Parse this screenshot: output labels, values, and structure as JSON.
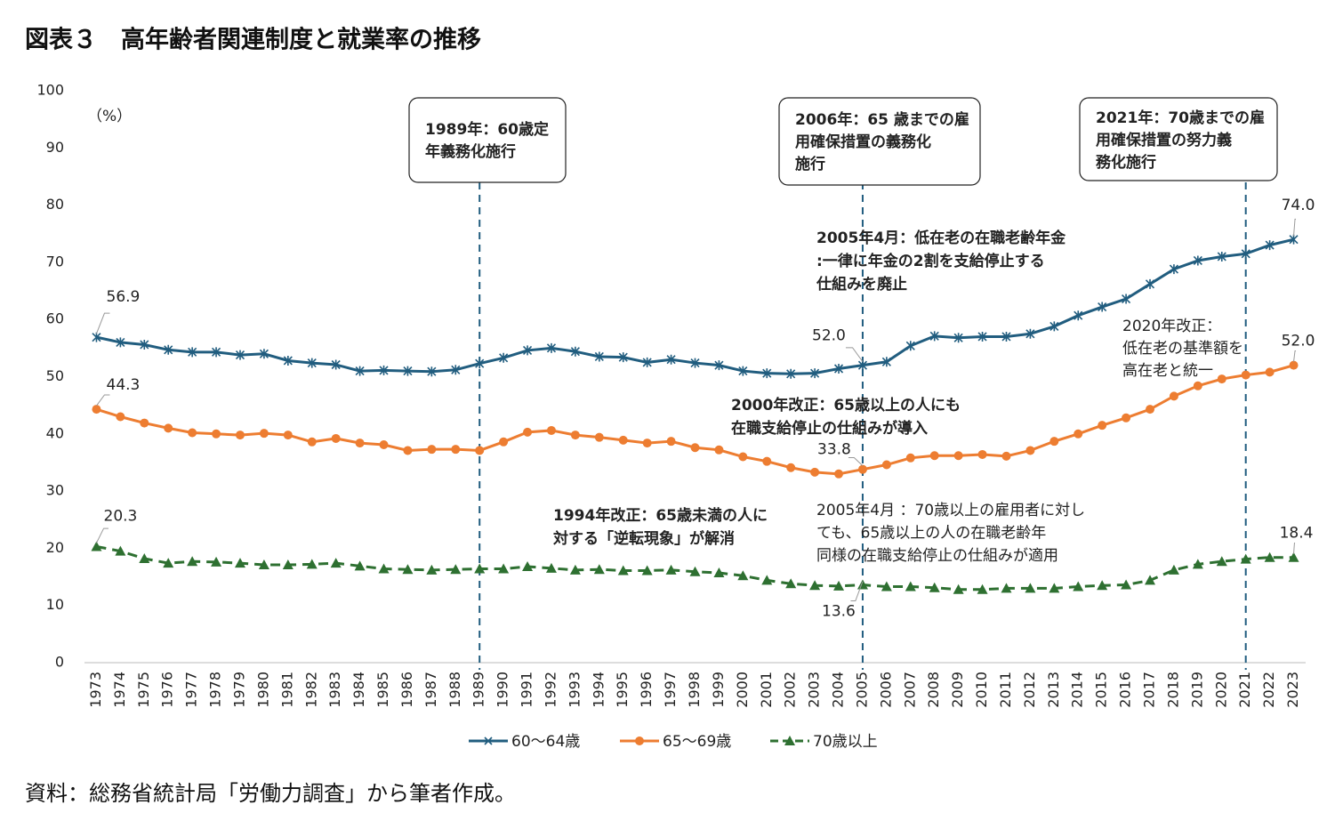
{
  "title": "図表３　高年齢者関連制度と就業率の推移",
  "source": "資料：総務省統計局「労働力調査」から筆者作成。",
  "chart_data": {
    "type": "line",
    "y_unit": "（%）",
    "categories": [
      "1973",
      "1974",
      "1975",
      "1976",
      "1977",
      "1978",
      "1979",
      "1980",
      "1981",
      "1982",
      "1983",
      "1984",
      "1985",
      "1986",
      "1987",
      "1988",
      "1989",
      "1990",
      "1991",
      "1992",
      "1993",
      "1994",
      "1995",
      "1996",
      "1997",
      "1998",
      "1999",
      "2000",
      "2001",
      "2002",
      "2003",
      "2004",
      "2005",
      "2006",
      "2007",
      "2008",
      "2009",
      "2010",
      "2011",
      "2012",
      "2013",
      "2014",
      "2015",
      "2016",
      "2017",
      "2018",
      "2019",
      "2020",
      "2021",
      "2022",
      "2023"
    ],
    "series": [
      {
        "name": "60～64歳",
        "color": "#215d7f",
        "marker": "cross",
        "dashed": false,
        "values": [
          56.9,
          56.0,
          55.6,
          54.7,
          54.3,
          54.3,
          53.8,
          54.0,
          52.8,
          52.4,
          52.1,
          51.0,
          51.1,
          51.0,
          50.9,
          51.2,
          52.3,
          53.3,
          54.6,
          55.0,
          54.4,
          53.5,
          53.4,
          52.5,
          53.0,
          52.4,
          52.0,
          51.0,
          50.6,
          50.5,
          50.6,
          51.4,
          52.0,
          52.6,
          55.4,
          57.1,
          56.8,
          57.0,
          57.0,
          57.5,
          58.8,
          60.7,
          62.2,
          63.6,
          66.2,
          68.8,
          70.3,
          71.0,
          71.5,
          73.0,
          74.0
        ],
        "value_labels": [
          "56.9",
          null,
          null,
          null,
          null,
          null,
          null,
          null,
          null,
          null,
          null,
          null,
          null,
          null,
          null,
          null,
          null,
          null,
          null,
          null,
          null,
          null,
          null,
          null,
          null,
          null,
          null,
          null,
          null,
          null,
          null,
          null,
          "52.0",
          null,
          null,
          null,
          null,
          null,
          null,
          null,
          null,
          null,
          null,
          null,
          null,
          null,
          null,
          null,
          null,
          null,
          "74.0"
        ]
      },
      {
        "name": "65～69歳",
        "color": "#ed7d31",
        "marker": "circle",
        "dashed": false,
        "values": [
          44.3,
          43.0,
          41.9,
          41.0,
          40.2,
          40.0,
          39.8,
          40.1,
          39.8,
          38.6,
          39.2,
          38.4,
          38.1,
          37.1,
          37.3,
          37.3,
          37.1,
          38.6,
          40.3,
          40.6,
          39.8,
          39.4,
          38.9,
          38.4,
          38.7,
          37.6,
          37.2,
          36.0,
          35.2,
          34.1,
          33.3,
          33.0,
          33.8,
          34.6,
          35.8,
          36.2,
          36.2,
          36.4,
          36.1,
          37.1,
          38.7,
          40.0,
          41.5,
          42.8,
          44.3,
          46.6,
          48.4,
          49.6,
          50.3,
          50.8,
          52.0
        ],
        "value_labels": [
          "44.3",
          null,
          null,
          null,
          null,
          null,
          null,
          null,
          null,
          null,
          null,
          null,
          null,
          null,
          null,
          null,
          null,
          null,
          null,
          null,
          null,
          null,
          null,
          null,
          null,
          null,
          null,
          null,
          null,
          null,
          null,
          null,
          "33.8",
          null,
          null,
          null,
          null,
          null,
          null,
          null,
          null,
          null,
          null,
          null,
          null,
          null,
          null,
          null,
          null,
          null,
          "52.0"
        ]
      },
      {
        "name": "70歳以上",
        "color": "#2e7031",
        "marker": "triangle",
        "dashed": true,
        "values": [
          20.3,
          19.5,
          18.2,
          17.4,
          17.7,
          17.6,
          17.4,
          17.1,
          17.1,
          17.2,
          17.4,
          16.9,
          16.4,
          16.3,
          16.2,
          16.3,
          16.4,
          16.4,
          16.8,
          16.5,
          16.2,
          16.3,
          16.1,
          16.1,
          16.2,
          15.9,
          15.7,
          15.2,
          14.4,
          13.8,
          13.5,
          13.4,
          13.6,
          13.3,
          13.3,
          13.1,
          12.8,
          12.8,
          13.0,
          13.0,
          13.0,
          13.3,
          13.5,
          13.6,
          14.4,
          16.2,
          17.2,
          17.7,
          18.1,
          18.4,
          18.4
        ],
        "value_labels": [
          "20.3",
          null,
          null,
          null,
          null,
          null,
          null,
          null,
          null,
          null,
          null,
          null,
          null,
          null,
          null,
          null,
          null,
          null,
          null,
          null,
          null,
          null,
          null,
          null,
          null,
          null,
          null,
          null,
          null,
          null,
          null,
          null,
          "13.6",
          null,
          null,
          null,
          null,
          null,
          null,
          null,
          null,
          null,
          null,
          null,
          null,
          null,
          null,
          null,
          null,
          null,
          "18.4"
        ]
      }
    ],
    "ylim": [
      0,
      100
    ],
    "yticks": [
      0,
      10,
      20,
      30,
      40,
      50,
      60,
      70,
      80,
      90,
      100
    ],
    "grid": false,
    "legend": "bottom",
    "reference_lines": [
      "1989",
      "2005",
      "2021"
    ],
    "annotations": [
      {
        "boxed": true,
        "bold": true,
        "lines": [
          "1989年：60歳定",
          "年義務化施行"
        ]
      },
      {
        "boxed": true,
        "bold": true,
        "lines": [
          "2006年：65 歳までの雇",
          "用確保措置の義務化",
          "施行"
        ]
      },
      {
        "boxed": true,
        "bold": true,
        "lines": [
          "2021年：70歳までの雇",
          "用確保措置の努力義",
          "務化施行"
        ]
      },
      {
        "boxed": false,
        "bold": true,
        "lines": [
          "2005年4月：低在老の在職老齢年金",
          ":一律に年金の2割を支給停止する",
          "仕組みを廃止"
        ]
      },
      {
        "boxed": false,
        "bold": false,
        "lines": [
          "2020年改正：",
          "低在老の基準額を",
          "高在老と統一"
        ]
      },
      {
        "boxed": false,
        "bold": true,
        "lines": [
          "2000年改正：65歳以上の人にも",
          "在職支給停止の仕組みが導入"
        ]
      },
      {
        "boxed": false,
        "bold": true,
        "lines": [
          "1994年改正：65歳未満の人に",
          "対する「逆転現象」が解消"
        ]
      },
      {
        "boxed": false,
        "bold": false,
        "lines": [
          "2005年4月 ：70歳以上の雇用者に対し",
          "ても、65歳以上の人の在職老齢年",
          "同様の在職支給停止の仕組みが適用"
        ]
      }
    ]
  }
}
